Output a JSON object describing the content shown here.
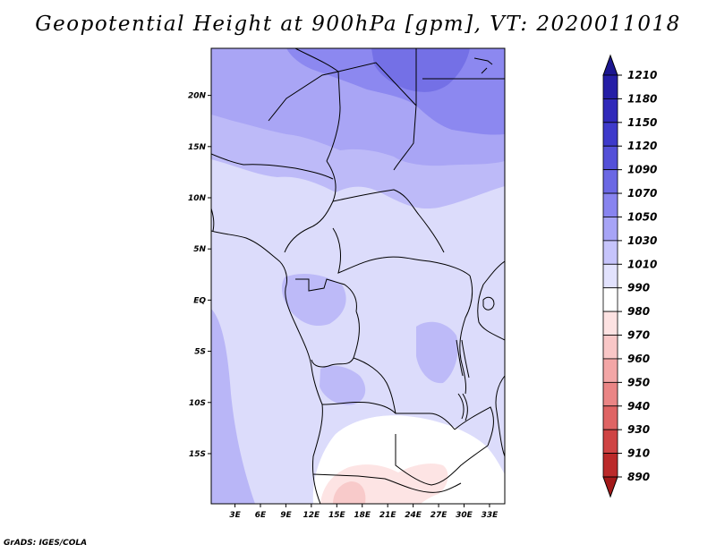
{
  "title": "Geopotential Height at 900hPa [gpm], VT: 2020011018",
  "credit": "GrADS: IGES/COLA",
  "map": {
    "lat_labels": [
      "20N",
      "15N",
      "10N",
      "5N",
      "EQ",
      "5S",
      "10S",
      "15S"
    ],
    "lat_values": [
      20,
      15,
      10,
      5,
      0,
      -5,
      -10,
      -15
    ],
    "lon_labels": [
      "3E",
      "6E",
      "9E",
      "12E",
      "15E",
      "18E",
      "21E",
      "24E",
      "27E",
      "30E",
      "33E"
    ],
    "lon_values": [
      3,
      6,
      9,
      12,
      15,
      18,
      21,
      24,
      27,
      30,
      33
    ],
    "extent": {
      "lon_min": 0.2,
      "lon_max": 34.8,
      "lat_min": -19.9,
      "lat_max": 24.6
    }
  },
  "colorbar": {
    "labels": [
      "1210",
      "1180",
      "1150",
      "1120",
      "1090",
      "1070",
      "1050",
      "1030",
      "1010",
      "990",
      "980",
      "970",
      "960",
      "950",
      "940",
      "930",
      "910",
      "890"
    ],
    "colors": [
      "#1c1690",
      "#251ea6",
      "#3029ba",
      "#3e3acb",
      "#5450d8",
      "#6b68e4",
      "#8884ef",
      "#a7a4f6",
      "#c6c4fb",
      "#e2e2fd",
      "#ffffff",
      "#fde2e2",
      "#f9c7c7",
      "#f3a6a6",
      "#ea8585",
      "#df6464",
      "#cf4444",
      "#bb2a2a",
      "#a31919"
    ]
  }
}
